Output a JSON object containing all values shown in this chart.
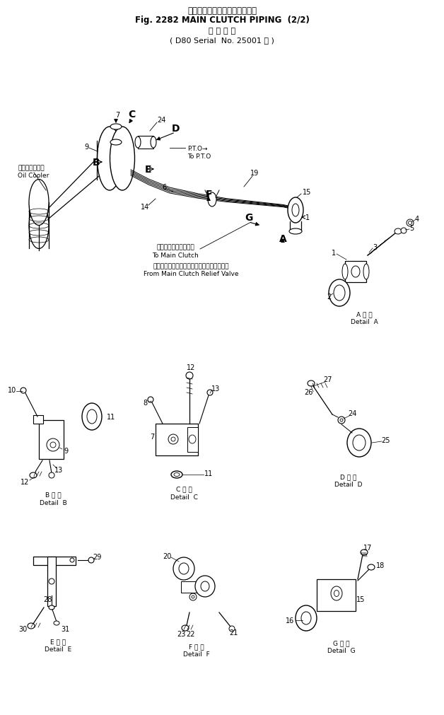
{
  "title_jp": "メイン　クラッチ　パイピング",
  "title_en": "Fig. 2282 MAIN CLUTCH PIPING  (2/2)",
  "subtitle_jp": "適 用 号 機",
  "subtitle_en": "D80 Serial  No. 25001 ～",
  "oilcooler_jp": "オイル　クーラ",
  "oilcooler_en": "Oil Cooler",
  "pto_label": "P.T.O→",
  "pto_label2": "To P.T.O",
  "to_main": "メイン　クラッチ　へ",
  "to_main2": "To Main Clutch",
  "from_relief_jp": "メイン　クラッチ　リリーフ　バルブ　から",
  "from_relief_en": "From Main Clutch Relief Valve",
  "detail_a_jp": "A 詳 細",
  "detail_a_en": "Detail  A",
  "detail_b_jp": "B 詳 細",
  "detail_b_en": "Detail  B",
  "detail_c_jp": "C 詳 細",
  "detail_c_en": "Detail  C",
  "detail_d_jp": "D 詳 細",
  "detail_d_en": "Detail  D",
  "detail_e_jp": "E 詳 細",
  "detail_e_en": "Detail  E",
  "detail_f_jp": "F 詳 細",
  "detail_f_en": "Detail  F",
  "detail_g_jp": "G 詳 細",
  "detail_g_en": "Detail  G",
  "bg_color": "#ffffff",
  "fg_color": "#000000",
  "fig_width": 6.28,
  "fig_height": 10.12
}
